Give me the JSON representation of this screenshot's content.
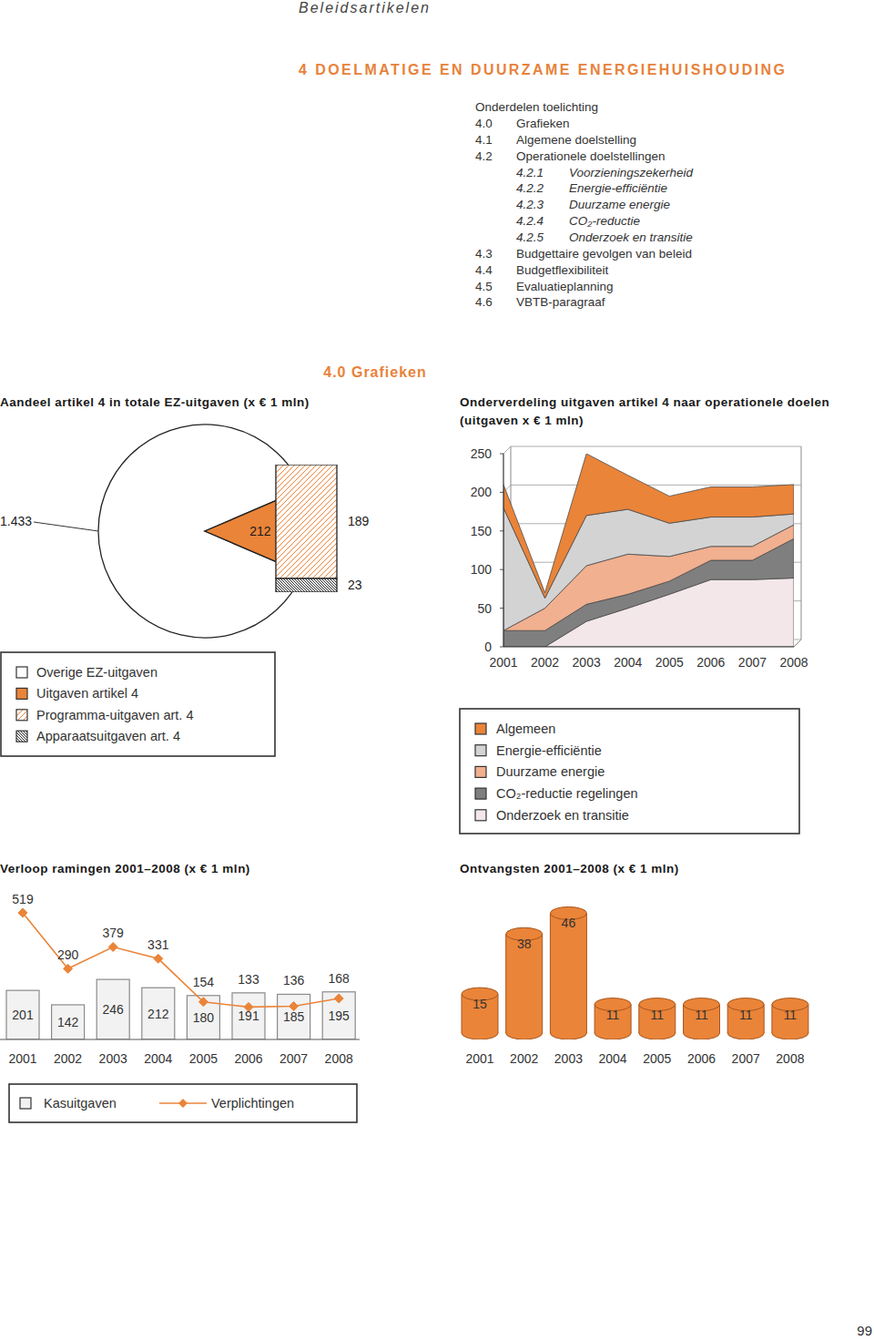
{
  "header": {
    "running_head": "Beleidsartikelen",
    "title": "4 DOELMATIGE EN DUURZAME ENERGIEHUISHOUDING"
  },
  "toc": {
    "heading": "Onderdelen toelichting",
    "items": [
      {
        "number": "4.0",
        "text": "Grafieken"
      },
      {
        "number": "4.1",
        "text": "Algemene doelstelling"
      },
      {
        "number": "4.2",
        "text": "Operationele doelstellingen",
        "children": [
          {
            "number": "4.2.1",
            "text": "Voorzieningszekerheid"
          },
          {
            "number": "4.2.2",
            "text": "Energie-efficiëntie"
          },
          {
            "number": "4.2.3",
            "text": "Duurzame energie"
          },
          {
            "number": "4.2.4",
            "text": "CO₂-reductie"
          },
          {
            "number": "4.2.5",
            "text": "Onderzoek en transitie"
          }
        ]
      },
      {
        "number": "4.3",
        "text": "Budgettaire gevolgen van beleid"
      },
      {
        "number": "4.4",
        "text": "Budgetflexibiliteit"
      },
      {
        "number": "4.5",
        "text": "Evaluatieplanning"
      },
      {
        "number": "4.6",
        "text": "VBTB-paragraaf"
      }
    ]
  },
  "section_heading": "4.0 Grafieken",
  "chart_data": [
    {
      "type": "pie",
      "title": "Aandeel artikel 4 in totale EZ-uitgaven (x € 1 mln)",
      "categories": [
        "Overige EZ-uitgaven",
        "Uitgaven artikel 4"
      ],
      "values": [
        1433,
        212
      ],
      "value_labels": [
        "1.433",
        "212"
      ],
      "colors": [
        "#ffffff",
        "#ea8439"
      ],
      "data_labels": true,
      "legend": "bottom-left"
    },
    {
      "type": "bar",
      "stacked": true,
      "categories": [
        null
      ],
      "series": [
        {
          "name": "Programma-uitgaven art. 4",
          "color": "#ea8439",
          "values": [
            189
          ]
        },
        {
          "name": "Apparaatsuitgaven art. 4",
          "color": "#1a1a1a",
          "values": [
            23
          ]
        }
      ],
      "ylim": [
        0,
        212
      ],
      "data_labels": true,
      "tick_labels": false,
      "legend": "bottom-left"
    },
    {
      "type": "area",
      "stacked": true,
      "title": "Onderverdeling uitgaven artikel 4 naar operationele doelen (uitgaven x € 1 mln)",
      "categories": [
        "2001",
        "2002",
        "2003",
        "2004",
        "2005",
        "2006",
        "2007",
        "2008"
      ],
      "series": [
        {
          "name": "Algemeen",
          "color": "#ea8439",
          "values": [
            30,
            7,
            80,
            44,
            35,
            39,
            39,
            38
          ]
        },
        {
          "name": "Energie-efficiëntie",
          "color": "#d3d3d3",
          "values": [
            159,
            13,
            65,
            58,
            43,
            38,
            38,
            14
          ]
        },
        {
          "name": "Duurzame energie",
          "color": "#f1b08f",
          "values": [
            0,
            29,
            50,
            52,
            32,
            18,
            18,
            18
          ]
        },
        {
          "name": "CO₂-reductie regelingen",
          "color": "#7f7f7f",
          "values": [
            21,
            21,
            22,
            18,
            17,
            25,
            25,
            51
          ]
        },
        {
          "name": "Onderzoek en transitie",
          "color": "#f3e7e9",
          "values": [
            0,
            0,
            33,
            50,
            68,
            87,
            87,
            89
          ]
        }
      ],
      "ylim": [
        0,
        250
      ],
      "yticks": [
        0,
        50,
        100,
        150,
        200,
        250
      ],
      "grid": true,
      "legend": "bottom"
    },
    {
      "type": "bar",
      "title": "Verloop ramingen 2001–2008 (x € 1 mln)",
      "categories": [
        "2001",
        "2002",
        "2003",
        "2004",
        "2005",
        "2006",
        "2007",
        "2008"
      ],
      "series": [
        {
          "name": "Kasuitgaven",
          "type": "bar",
          "color": "#f2f2f2",
          "values": [
            201,
            142,
            246,
            212,
            180,
            191,
            185,
            195
          ]
        },
        {
          "name": "Verplichtingen",
          "type": "line",
          "color": "#ea8439",
          "marker": "diamond",
          "values": [
            519,
            290,
            379,
            331,
            154,
            133,
            136,
            168
          ]
        }
      ],
      "ylim": [
        0,
        560
      ],
      "data_labels": true,
      "tick_labels": "x",
      "legend": "bottom"
    },
    {
      "type": "bar",
      "title": "Ontvangsten 2001–2008 (x € 1 mln)",
      "categories": [
        "2001",
        "2002",
        "2003",
        "2004",
        "2005",
        "2006",
        "2007",
        "2008"
      ],
      "values": [
        15,
        38,
        46,
        11,
        11,
        11,
        11,
        11
      ],
      "color": "#ea8439",
      "ylim": [
        0,
        50
      ],
      "data_labels": true,
      "tick_labels": "x"
    }
  ],
  "page_number": "99"
}
